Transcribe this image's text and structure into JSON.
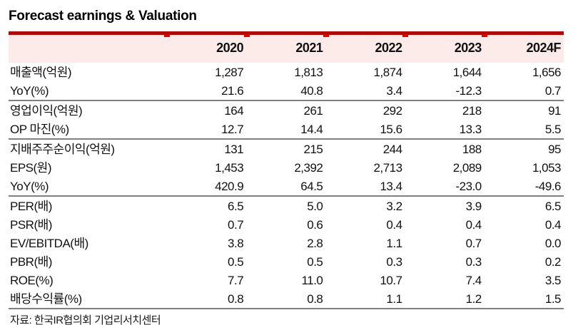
{
  "title": "Forecast earnings & Valuation",
  "table": {
    "columns": [
      "",
      "2020",
      "2021",
      "2022",
      "2023",
      "2024F"
    ],
    "rows": [
      {
        "label": "매출액(억원)",
        "values": [
          "1,287",
          "1,813",
          "1,874",
          "1,644",
          "1,656"
        ],
        "group_end": false
      },
      {
        "label": "YoY(%)",
        "values": [
          "21.6",
          "40.8",
          "3.4",
          "-12.3",
          "0.7"
        ],
        "group_end": true
      },
      {
        "label": "영업이익(억원)",
        "values": [
          "164",
          "261",
          "292",
          "218",
          "91"
        ],
        "group_end": false
      },
      {
        "label": "OP 마진(%)",
        "values": [
          "12.7",
          "14.4",
          "15.6",
          "13.3",
          "5.5"
        ],
        "group_end": true
      },
      {
        "label": "지배주주순이익(억원)",
        "values": [
          "131",
          "215",
          "244",
          "188",
          "95"
        ],
        "group_end": false
      },
      {
        "label": "EPS(원)",
        "values": [
          "1,453",
          "2,392",
          "2,713",
          "2,089",
          "1,053"
        ],
        "group_end": false
      },
      {
        "label": "YoY(%)",
        "values": [
          "420.9",
          "64.5",
          "13.4",
          "-23.0",
          "-49.6"
        ],
        "group_end": true
      },
      {
        "label": "PER(배)",
        "values": [
          "6.5",
          "5.0",
          "3.2",
          "3.9",
          "6.5"
        ],
        "group_end": false
      },
      {
        "label": "PSR(배)",
        "values": [
          "0.7",
          "0.6",
          "0.4",
          "0.4",
          "0.4"
        ],
        "group_end": false
      },
      {
        "label": "EV/EBITDA(배)",
        "values": [
          "3.8",
          "2.8",
          "1.1",
          "0.7",
          "0.0"
        ],
        "group_end": false
      },
      {
        "label": "PBR(배)",
        "values": [
          "0.5",
          "0.5",
          "0.3",
          "0.3",
          "0.2"
        ],
        "group_end": false
      },
      {
        "label": "ROE(%)",
        "values": [
          "7.7",
          "11.0",
          "10.7",
          "7.4",
          "3.5"
        ],
        "group_end": false
      },
      {
        "label": "배당수익률(%)",
        "values": [
          "0.8",
          "0.8",
          "1.1",
          "1.2",
          "1.5"
        ],
        "group_end": false
      }
    ]
  },
  "footer": {
    "source": "자료: 한국IR협의회 기업리서치센터"
  },
  "colors": {
    "accent_red": "#ad0a0a",
    "tick_red": "#e00000",
    "header_bg": "#fcebe9",
    "line_gray": "#7f7f7f",
    "text": "#111111"
  }
}
